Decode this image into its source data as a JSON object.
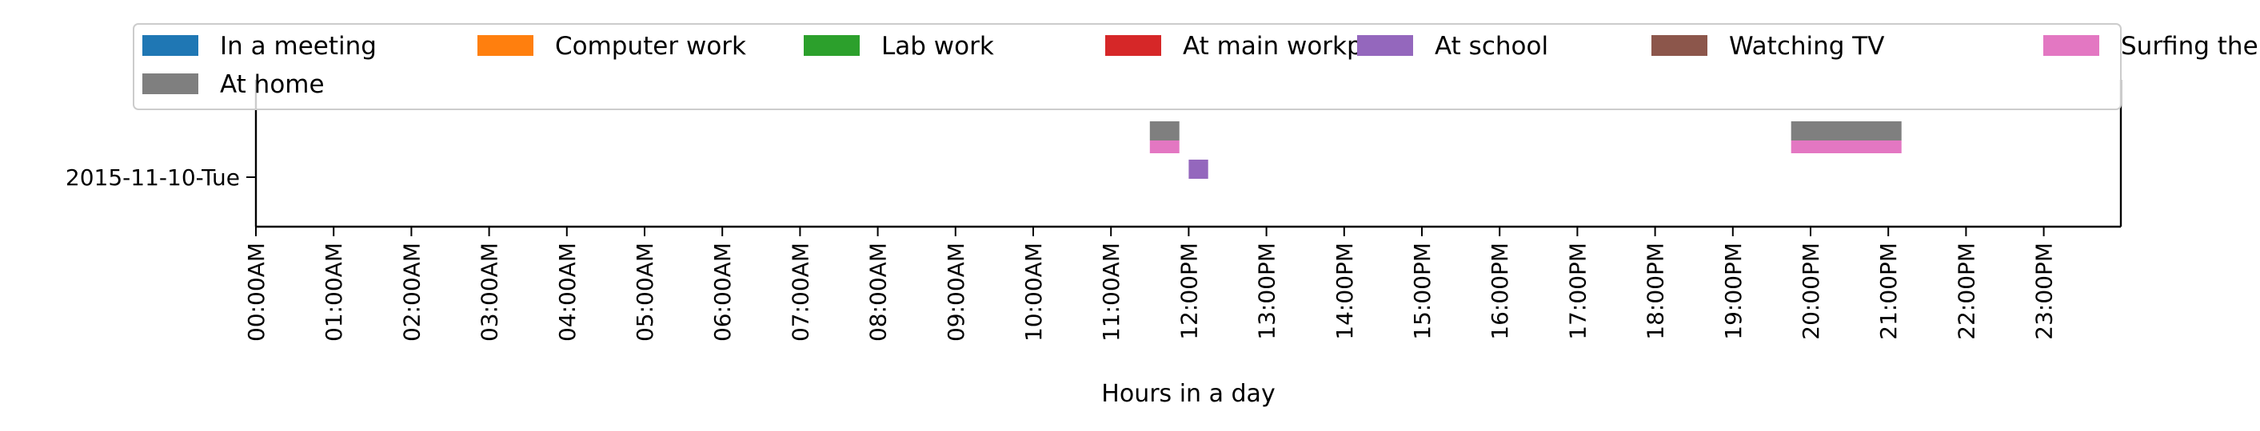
{
  "chart_data": {
    "type": "timeline",
    "xlabel": "Hours in a day",
    "x_ticks": [
      "00:00AM",
      "01:00AM",
      "02:00AM",
      "03:00AM",
      "04:00AM",
      "05:00AM",
      "06:00AM",
      "07:00AM",
      "08:00AM",
      "09:00AM",
      "10:00AM",
      "11:00AM",
      "12:00PM",
      "13:00PM",
      "14:00PM",
      "15:00PM",
      "16:00PM",
      "17:00PM",
      "18:00PM",
      "19:00PM",
      "20:00PM",
      "21:00PM",
      "22:00PM",
      "23:00PM"
    ],
    "xlim_hours": [
      0,
      24
    ],
    "categories": [
      "2015-11-10-Tue"
    ],
    "legend_position": "top",
    "series": [
      {
        "name": "In a meeting",
        "color": "#1f77b4",
        "intervals": []
      },
      {
        "name": "Computer work",
        "color": "#ff7f0e",
        "intervals": []
      },
      {
        "name": "Lab work",
        "color": "#2ca02c",
        "intervals": []
      },
      {
        "name": "At main workplace",
        "color": "#d62728",
        "intervals": []
      },
      {
        "name": "At school",
        "color": "#9467bd",
        "intervals": [
          {
            "day": "2015-11-10-Tue",
            "start": 12.0,
            "end": 12.25
          }
        ]
      },
      {
        "name": "Watching TV",
        "color": "#8c564b",
        "intervals": []
      },
      {
        "name": "Surfing the internet",
        "color": "#e377c2",
        "intervals": [
          {
            "day": "2015-11-10-Tue",
            "start": 11.5,
            "end": 11.88
          },
          {
            "day": "2015-11-10-Tue",
            "start": 19.75,
            "end": 21.17
          }
        ]
      },
      {
        "name": "At home",
        "color": "#7f7f7f",
        "intervals": [
          {
            "day": "2015-11-10-Tue",
            "start": 11.5,
            "end": 11.88
          },
          {
            "day": "2015-11-10-Tue",
            "start": 19.75,
            "end": 21.17
          }
        ]
      }
    ]
  }
}
